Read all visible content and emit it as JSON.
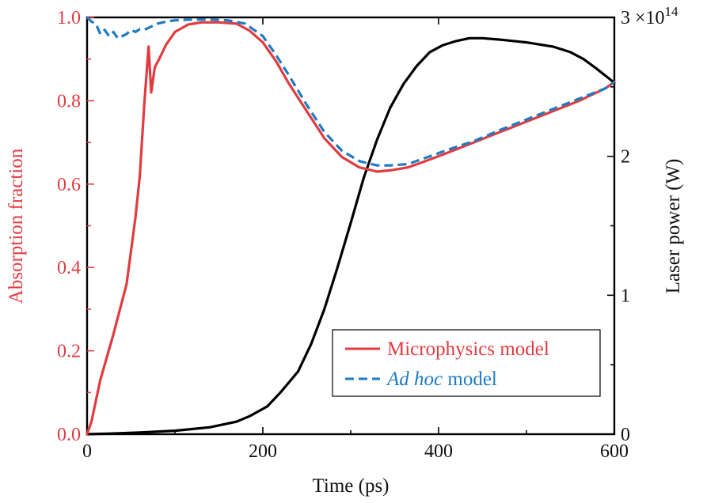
{
  "chart_data": {
    "type": "line",
    "xlabel": "Time (ps)",
    "ylabel_left": "Absorption fraction",
    "ylabel_right": "Laser power (W)",
    "right_axis_multiplier": "3 ×10",
    "right_axis_multiplier_exp": "14",
    "xlim": [
      0,
      600
    ],
    "ylim_left": [
      0,
      1.0
    ],
    "ylim_right": [
      0,
      3.0
    ],
    "x_ticks": [
      "0",
      "200",
      "400",
      "600"
    ],
    "y_left_ticks": [
      "0.0",
      "0.2",
      "0.4",
      "0.6",
      "0.8",
      "1.0"
    ],
    "y_right_ticks": [
      "0",
      "1",
      "2"
    ],
    "legend_position": "lower-right",
    "series": [
      {
        "name": "Microphysics model",
        "axis": "left",
        "color": "#e03c40",
        "style": "solid",
        "x": [
          0,
          5,
          15,
          30,
          45,
          55,
          60,
          65,
          70,
          73,
          77,
          82,
          90,
          100,
          115,
          130,
          150,
          170,
          185,
          200,
          215,
          230,
          250,
          270,
          290,
          310,
          330,
          345,
          365,
          385,
          410,
          440,
          470,
          500,
          530,
          560,
          590,
          600
        ],
        "y": [
          0.0,
          0.03,
          0.13,
          0.24,
          0.36,
          0.52,
          0.62,
          0.79,
          0.93,
          0.82,
          0.88,
          0.9,
          0.935,
          0.965,
          0.983,
          0.988,
          0.988,
          0.985,
          0.968,
          0.94,
          0.895,
          0.84,
          0.775,
          0.71,
          0.665,
          0.64,
          0.63,
          0.633,
          0.64,
          0.655,
          0.675,
          0.7,
          0.725,
          0.75,
          0.775,
          0.8,
          0.83,
          0.845
        ]
      },
      {
        "name_italic": "Ad hoc",
        "name_rest": " model",
        "axis": "left",
        "color": "#1f7bc2",
        "style": "dashed",
        "x": [
          0,
          5,
          10,
          15,
          20,
          25,
          30,
          35,
          40,
          45,
          50,
          55,
          60,
          65,
          70,
          80,
          90,
          100,
          120,
          140,
          160,
          180,
          200,
          215,
          230,
          250,
          270,
          290,
          310,
          330,
          345,
          365,
          385,
          410,
          440,
          470,
          500,
          530,
          560,
          590,
          600
        ],
        "y": [
          1.0,
          0.99,
          0.985,
          0.96,
          0.97,
          0.955,
          0.965,
          0.95,
          0.955,
          0.96,
          0.97,
          0.965,
          0.972,
          0.97,
          0.975,
          0.985,
          0.99,
          0.993,
          0.995,
          0.995,
          0.993,
          0.985,
          0.955,
          0.91,
          0.86,
          0.79,
          0.725,
          0.68,
          0.655,
          0.645,
          0.645,
          0.648,
          0.663,
          0.682,
          0.703,
          0.73,
          0.755,
          0.78,
          0.805,
          0.83,
          0.845
        ]
      },
      {
        "name": "Laser power",
        "axis": "right",
        "color": "#000000",
        "style": "solid",
        "x": [
          0,
          30,
          60,
          100,
          140,
          170,
          185,
          205,
          220,
          240,
          255,
          270,
          285,
          300,
          315,
          330,
          345,
          360,
          375,
          390,
          405,
          420,
          435,
          450,
          470,
          500,
          530,
          550,
          565,
          580,
          600
        ],
        "y": [
          0.0,
          0.005,
          0.012,
          0.025,
          0.05,
          0.09,
          0.13,
          0.2,
          0.3,
          0.45,
          0.65,
          0.9,
          1.2,
          1.52,
          1.85,
          2.12,
          2.35,
          2.52,
          2.65,
          2.75,
          2.8,
          2.83,
          2.85,
          2.85,
          2.84,
          2.82,
          2.79,
          2.75,
          2.7,
          2.63,
          2.53
        ]
      }
    ]
  },
  "colors": {
    "left_axis": "#e03c40",
    "right_axis": "#000000",
    "microphysics": "#e03c40",
    "adhoc": "#1f7bc2",
    "laser": "#000000"
  }
}
